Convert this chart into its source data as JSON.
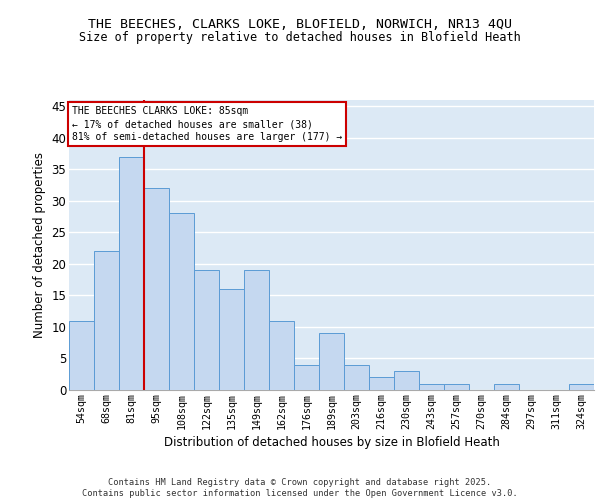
{
  "title1": "THE BEECHES, CLARKS LOKE, BLOFIELD, NORWICH, NR13 4QU",
  "title2": "Size of property relative to detached houses in Blofield Heath",
  "xlabel": "Distribution of detached houses by size in Blofield Heath",
  "ylabel": "Number of detached properties",
  "bar_categories": [
    "54sqm",
    "68sqm",
    "81sqm",
    "95sqm",
    "108sqm",
    "122sqm",
    "135sqm",
    "149sqm",
    "162sqm",
    "176sqm",
    "189sqm",
    "203sqm",
    "216sqm",
    "230sqm",
    "243sqm",
    "257sqm",
    "270sqm",
    "284sqm",
    "297sqm",
    "311sqm",
    "324sqm"
  ],
  "bar_heights": [
    11,
    22,
    37,
    32,
    28,
    19,
    16,
    19,
    11,
    4,
    9,
    4,
    2,
    3,
    1,
    1,
    0,
    1,
    0,
    0,
    1
  ],
  "bar_color": "#c5d8f0",
  "bar_edge_color": "#5b9bd5",
  "background_color": "#dce9f5",
  "grid_color": "#ffffff",
  "annotation_border_color": "#cc0000",
  "redline_color": "#cc0000",
  "annotation_text": "THE BEECHES CLARKS LOKE: 85sqm\n← 17% of detached houses are smaller (38)\n81% of semi-detached houses are larger (177) →",
  "footer_text": "Contains HM Land Registry data © Crown copyright and database right 2025.\nContains public sector information licensed under the Open Government Licence v3.0.",
  "ylim": [
    0,
    46
  ],
  "yticks": [
    0,
    5,
    10,
    15,
    20,
    25,
    30,
    35,
    40,
    45
  ]
}
